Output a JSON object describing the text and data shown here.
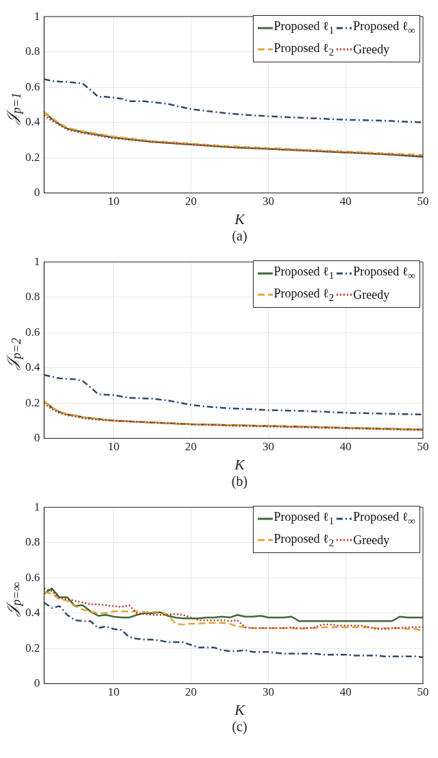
{
  "chart_data": [
    {
      "type": "line",
      "ylabel": "𝒥$_{p=1}$",
      "xlabel": "K",
      "annotations": [
        "(a)"
      ],
      "xlim": [
        1,
        50
      ],
      "xticks": [
        10,
        20,
        30,
        40,
        50
      ],
      "ylim": [
        0,
        1
      ],
      "yticks": [
        0,
        0.2,
        0.4,
        0.6,
        0.8,
        1
      ],
      "grid": true,
      "legend": "top right",
      "marker": "none",
      "series": [
        {
          "name": "Proposed ℓ$_{1}$",
          "color": "#3d6b35",
          "line_style": "solid",
          "x": [
            1,
            2,
            3,
            4,
            5,
            6,
            8,
            10,
            15,
            20,
            25,
            30,
            35,
            40,
            45,
            50
          ],
          "values": [
            0.46,
            0.42,
            0.39,
            0.365,
            0.355,
            0.345,
            0.33,
            0.315,
            0.29,
            0.275,
            0.26,
            0.25,
            0.24,
            0.23,
            0.22,
            0.205
          ]
        },
        {
          "name": "Proposed ℓ$_{2}$",
          "color": "#e0a43c",
          "line_style": "dashed",
          "x": [
            1,
            2,
            3,
            4,
            5,
            6,
            8,
            10,
            15,
            20,
            25,
            30,
            35,
            40,
            45,
            50
          ],
          "values": [
            0.46,
            0.425,
            0.395,
            0.37,
            0.36,
            0.35,
            0.335,
            0.32,
            0.295,
            0.28,
            0.265,
            0.255,
            0.245,
            0.235,
            0.225,
            0.215
          ]
        },
        {
          "name": "Proposed ℓ$_{∞}$",
          "color": "#2f4b6b",
          "line_style": "dashdot",
          "x": [
            1,
            2,
            3,
            4,
            5,
            6,
            7,
            8,
            9,
            10,
            11,
            12,
            14,
            16,
            17,
            18,
            19,
            20,
            22,
            25,
            28,
            30,
            35,
            40,
            45,
            50
          ],
          "values": [
            0.645,
            0.635,
            0.632,
            0.63,
            0.625,
            0.62,
            0.585,
            0.545,
            0.545,
            0.54,
            0.535,
            0.52,
            0.52,
            0.51,
            0.505,
            0.495,
            0.485,
            0.475,
            0.465,
            0.45,
            0.44,
            0.435,
            0.425,
            0.415,
            0.41,
            0.4
          ]
        },
        {
          "name": "Greedy",
          "color": "#b5312f",
          "line_style": "dotted",
          "x": [
            1,
            2,
            3,
            4,
            5,
            6,
            8,
            10,
            15,
            20,
            25,
            30,
            35,
            40,
            45,
            50
          ],
          "values": [
            0.44,
            0.41,
            0.385,
            0.36,
            0.35,
            0.34,
            0.325,
            0.31,
            0.29,
            0.275,
            0.26,
            0.25,
            0.24,
            0.23,
            0.22,
            0.21
          ]
        }
      ]
    },
    {
      "type": "line",
      "ylabel": "𝒥$_{p=2}$",
      "xlabel": "K",
      "annotations": [
        "(b)"
      ],
      "xlim": [
        1,
        50
      ],
      "xticks": [
        10,
        20,
        30,
        40,
        50
      ],
      "ylim": [
        0,
        1
      ],
      "yticks": [
        0,
        0.2,
        0.4,
        0.6,
        0.8,
        1
      ],
      "grid": true,
      "legend": "top right",
      "marker": "none",
      "series": [
        {
          "name": "Proposed ℓ$_{1}$",
          "color": "#3d6b35",
          "line_style": "solid",
          "x": [
            1,
            2,
            3,
            4,
            5,
            6,
            8,
            10,
            15,
            20,
            25,
            30,
            35,
            40,
            45,
            50
          ],
          "values": [
            0.21,
            0.175,
            0.15,
            0.135,
            0.13,
            0.12,
            0.11,
            0.1,
            0.09,
            0.08,
            0.075,
            0.07,
            0.065,
            0.06,
            0.055,
            0.05
          ]
        },
        {
          "name": "Proposed ℓ$_{2}$",
          "color": "#e0a43c",
          "line_style": "dashed",
          "x": [
            1,
            2,
            3,
            4,
            5,
            6,
            8,
            10,
            15,
            20,
            25,
            30,
            35,
            40,
            45,
            50
          ],
          "values": [
            0.21,
            0.175,
            0.15,
            0.138,
            0.13,
            0.12,
            0.11,
            0.1,
            0.09,
            0.08,
            0.075,
            0.07,
            0.065,
            0.06,
            0.055,
            0.05
          ]
        },
        {
          "name": "Proposed ℓ$_{∞}$",
          "color": "#2f4b6b",
          "line_style": "dashdot",
          "x": [
            1,
            3,
            5,
            6,
            7,
            8,
            10,
            12,
            15,
            17,
            20,
            22,
            25,
            28,
            30,
            35,
            40,
            45,
            50
          ],
          "values": [
            0.36,
            0.34,
            0.335,
            0.325,
            0.29,
            0.25,
            0.245,
            0.23,
            0.225,
            0.215,
            0.19,
            0.18,
            0.17,
            0.165,
            0.16,
            0.155,
            0.145,
            0.14,
            0.135
          ]
        },
        {
          "name": "Greedy",
          "color": "#b5312f",
          "line_style": "dotted",
          "x": [
            1,
            2,
            3,
            4,
            5,
            6,
            8,
            10,
            15,
            20,
            25,
            30,
            35,
            40,
            45,
            50
          ],
          "values": [
            0.2,
            0.165,
            0.145,
            0.13,
            0.125,
            0.115,
            0.105,
            0.1,
            0.09,
            0.08,
            0.072,
            0.067,
            0.062,
            0.057,
            0.052,
            0.047
          ]
        }
      ]
    },
    {
      "type": "line",
      "ylabel": "𝒥$_{p=∞}$",
      "xlabel": "K",
      "annotations": [
        "(c)"
      ],
      "xlim": [
        1,
        50
      ],
      "xticks": [
        10,
        20,
        30,
        40,
        50
      ],
      "ylim": [
        0,
        1
      ],
      "yticks": [
        0,
        0.2,
        0.4,
        0.6,
        0.8,
        1
      ],
      "grid": true,
      "legend": "top right",
      "marker": "none",
      "x": [
        1,
        2,
        3,
        4,
        5,
        6,
        7,
        8,
        9,
        10,
        11,
        12,
        13,
        14,
        15,
        16,
        17,
        18,
        19,
        20,
        21,
        22,
        23,
        24,
        25,
        26,
        27,
        28,
        29,
        30,
        31,
        32,
        33,
        34,
        35,
        36,
        37,
        38,
        39,
        40,
        41,
        42,
        43,
        44,
        45,
        46,
        47,
        48,
        49,
        50
      ],
      "series": [
        {
          "name": "Proposed ℓ$_{1}$",
          "color": "#3d6b35",
          "line_style": "solid",
          "values": [
            0.51,
            0.54,
            0.49,
            0.49,
            0.44,
            0.445,
            0.41,
            0.385,
            0.39,
            0.38,
            0.375,
            0.375,
            0.39,
            0.4,
            0.4,
            0.405,
            0.385,
            0.375,
            0.37,
            0.37,
            0.37,
            0.375,
            0.375,
            0.38,
            0.375,
            0.39,
            0.38,
            0.38,
            0.385,
            0.375,
            0.375,
            0.375,
            0.38,
            0.355,
            0.355,
            0.355,
            0.355,
            0.355,
            0.355,
            0.355,
            0.355,
            0.355,
            0.355,
            0.355,
            0.355,
            0.355,
            0.38,
            0.375,
            0.375,
            0.375
          ]
        },
        {
          "name": "Proposed ℓ$_{2}$",
          "color": "#e0a43c",
          "line_style": "dashed",
          "values": [
            0.52,
            0.51,
            0.48,
            0.47,
            0.44,
            0.42,
            0.41,
            0.4,
            0.4,
            0.41,
            0.41,
            0.41,
            0.41,
            0.405,
            0.405,
            0.41,
            0.39,
            0.34,
            0.335,
            0.34,
            0.34,
            0.345,
            0.345,
            0.345,
            0.34,
            0.325,
            0.32,
            0.315,
            0.315,
            0.315,
            0.315,
            0.315,
            0.315,
            0.31,
            0.315,
            0.315,
            0.32,
            0.32,
            0.32,
            0.32,
            0.32,
            0.32,
            0.32,
            0.315,
            0.315,
            0.315,
            0.315,
            0.31,
            0.31,
            0.3
          ]
        },
        {
          "name": "Proposed ℓ$_{∞}$",
          "color": "#2f4b6b",
          "line_style": "dashdot",
          "values": [
            0.46,
            0.43,
            0.44,
            0.39,
            0.36,
            0.355,
            0.355,
            0.315,
            0.325,
            0.31,
            0.305,
            0.265,
            0.255,
            0.25,
            0.25,
            0.245,
            0.235,
            0.235,
            0.235,
            0.22,
            0.205,
            0.205,
            0.205,
            0.19,
            0.185,
            0.185,
            0.19,
            0.18,
            0.18,
            0.18,
            0.175,
            0.17,
            0.17,
            0.17,
            0.17,
            0.17,
            0.165,
            0.165,
            0.165,
            0.165,
            0.16,
            0.16,
            0.16,
            0.16,
            0.155,
            0.155,
            0.155,
            0.155,
            0.155,
            0.15
          ]
        },
        {
          "name": "Greedy",
          "color": "#b5312f",
          "line_style": "dotted",
          "values": [
            0.54,
            0.525,
            0.485,
            0.48,
            0.47,
            0.46,
            0.45,
            0.45,
            0.445,
            0.44,
            0.435,
            0.445,
            0.4,
            0.395,
            0.39,
            0.39,
            0.39,
            0.395,
            0.39,
            0.375,
            0.36,
            0.36,
            0.36,
            0.36,
            0.355,
            0.36,
            0.32,
            0.315,
            0.315,
            0.315,
            0.315,
            0.315,
            0.32,
            0.315,
            0.315,
            0.32,
            0.335,
            0.335,
            0.33,
            0.33,
            0.33,
            0.33,
            0.32,
            0.31,
            0.31,
            0.315,
            0.315,
            0.32,
            0.32,
            0.32
          ]
        }
      ]
    }
  ]
}
